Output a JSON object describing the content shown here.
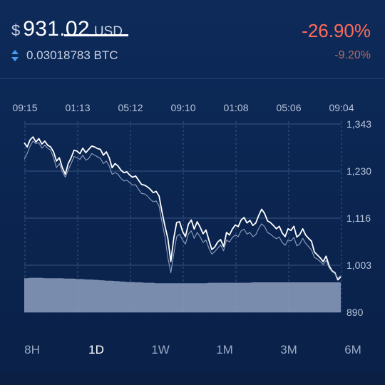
{
  "header": {
    "currency_symbol": "$",
    "price": "931.02",
    "price_unit": "USD",
    "swap_icon": "swap-vertical-icon",
    "btc_value": "0.03018783 BTC",
    "change_pct": "-26.90%",
    "change_sub": "-9.20%",
    "colors": {
      "negative": "#ff6b5b",
      "negative_muted": "#b36a64"
    }
  },
  "chart_data": {
    "type": "line",
    "x_ticks": [
      "09:15",
      "01:13",
      "05:12",
      "09:10",
      "01:08",
      "05:06",
      "09:04"
    ],
    "y_ticks": [
      "1,343",
      "1,230",
      "1,116",
      "1,003",
      "890"
    ],
    "ylim": [
      890,
      1343
    ],
    "series": [
      {
        "values": [
          1298,
          1288,
          1305,
          1312,
          1300,
          1308,
          1295,
          1302,
          1292,
          1288,
          1276,
          1254,
          1262,
          1238,
          1222,
          1248,
          1262,
          1280,
          1278,
          1272,
          1285,
          1274,
          1282,
          1290,
          1288,
          1284,
          1282,
          1268,
          1276,
          1262,
          1238,
          1248,
          1242,
          1232,
          1226,
          1228,
          1220,
          1215,
          1218,
          1208,
          1198,
          1196,
          1192,
          1186,
          1178,
          1181,
          1170,
          1132,
          1098,
          1068,
          1012,
          1068,
          1106,
          1108,
          1085,
          1072,
          1102,
          1112,
          1090,
          1108,
          1095,
          1079,
          1088,
          1064,
          1041,
          1047,
          1059,
          1065,
          1048,
          1082,
          1076,
          1090,
          1100,
          1096,
          1112,
          1118,
          1105,
          1111,
          1099,
          1105,
          1123,
          1138,
          1128,
          1110,
          1106,
          1099,
          1091,
          1097,
          1081,
          1072,
          1091,
          1087,
          1097,
          1071,
          1077,
          1091,
          1076,
          1068,
          1061,
          1035,
          1028,
          1021,
          1012,
          1025,
          1002,
          990,
          985,
          968,
          975
        ],
        "color": "#ffffff"
      },
      {
        "values": [
          1258,
          1272,
          1290,
          1302,
          1296,
          1298,
          1285,
          1292,
          1285,
          1280,
          1262,
          1238,
          1248,
          1228,
          1215,
          1232,
          1248,
          1265,
          1262,
          1258,
          1268,
          1256,
          1260,
          1272,
          1268,
          1264,
          1260,
          1248,
          1254,
          1242,
          1222,
          1226,
          1222,
          1212,
          1206,
          1208,
          1202,
          1196,
          1197,
          1186,
          1176,
          1175,
          1170,
          1162,
          1156,
          1158,
          1146,
          1107,
          1072,
          1022,
          985,
          1030,
          1072,
          1078,
          1064,
          1054,
          1078,
          1086,
          1068,
          1082,
          1072,
          1058,
          1064,
          1044,
          1030,
          1036,
          1044,
          1052,
          1038,
          1064,
          1059,
          1070,
          1076,
          1072,
          1086,
          1090,
          1078,
          1082,
          1072,
          1077,
          1092,
          1103,
          1096,
          1082,
          1078,
          1072,
          1067,
          1071,
          1058,
          1051,
          1064,
          1062,
          1070,
          1050,
          1054,
          1068,
          1056,
          1048,
          1040,
          1022,
          1018,
          1012,
          1005,
          1015,
          997,
          988,
          983,
          972,
          978
        ],
        "color": "#8fa0bf"
      },
      {
        "values": [
          972,
          972,
          973,
          973,
          973,
          973,
          973,
          972,
          972,
          972,
          972,
          972,
          972,
          972,
          971,
          971,
          971,
          971,
          970,
          970,
          970,
          969,
          969,
          969,
          968,
          968,
          967,
          967,
          966,
          966,
          966,
          965,
          965,
          964,
          964,
          963,
          963,
          963,
          962,
          962,
          962,
          961,
          961,
          961,
          961,
          960,
          960,
          960,
          960,
          960,
          960,
          960,
          960,
          960,
          960,
          960,
          960,
          960,
          960,
          960,
          960,
          960,
          960,
          961,
          961,
          961,
          961,
          961,
          961,
          961,
          961,
          961,
          961,
          961,
          961,
          961,
          961,
          961,
          962,
          962,
          962,
          962,
          962,
          962,
          962,
          962,
          962,
          962,
          962,
          962,
          962,
          962,
          962,
          962,
          962,
          962,
          962,
          962,
          962,
          962,
          962,
          962,
          962,
          962,
          962,
          962,
          962,
          962,
          962
        ],
        "color": "#8e9fbf",
        "style": "area"
      }
    ],
    "grid": true
  },
  "ranges": {
    "items": [
      "8H",
      "1D",
      "1W",
      "1M",
      "3M",
      "6M"
    ],
    "active": "1D"
  }
}
